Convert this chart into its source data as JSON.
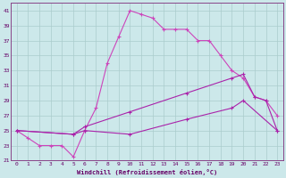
{
  "xlabel": "Windchill (Refroidissement éolien,°C)",
  "bg_color": "#cce8ea",
  "grid_color": "#aacccc",
  "line_color1": "#aa22aa",
  "line_color2": "#cc44bb",
  "xlim": [
    -0.5,
    23.5
  ],
  "ylim": [
    21,
    42
  ],
  "yticks": [
    21,
    23,
    25,
    27,
    29,
    31,
    33,
    35,
    37,
    39,
    41
  ],
  "xticks": [
    0,
    1,
    2,
    3,
    4,
    5,
    6,
    7,
    8,
    9,
    10,
    11,
    12,
    13,
    14,
    15,
    16,
    17,
    18,
    19,
    20,
    21,
    22,
    23
  ],
  "series1_x": [
    0,
    1,
    2,
    3,
    4,
    5,
    6,
    7,
    8,
    9,
    10,
    11,
    12,
    13,
    14,
    15,
    16,
    17,
    18,
    19,
    20,
    21,
    22,
    23
  ],
  "series1_y": [
    25.0,
    24.0,
    23.0,
    23.0,
    23.0,
    21.5,
    25.0,
    28.0,
    34.0,
    37.5,
    41.0,
    40.5,
    40.0,
    38.5,
    38.5,
    38.5,
    37.0,
    37.0,
    35.0,
    33.0,
    32.0,
    29.5,
    29.0,
    27.0
  ],
  "series2_x": [
    0,
    5,
    6,
    10,
    15,
    19,
    20,
    21,
    22,
    23
  ],
  "series2_y": [
    25.0,
    24.5,
    25.5,
    27.5,
    30.0,
    32.0,
    32.5,
    29.5,
    29.0,
    25.0
  ],
  "series3_x": [
    0,
    5,
    6,
    10,
    15,
    19,
    20,
    23
  ],
  "series3_y": [
    25.0,
    24.5,
    25.0,
    24.5,
    26.5,
    28.0,
    29.0,
    25.0
  ]
}
